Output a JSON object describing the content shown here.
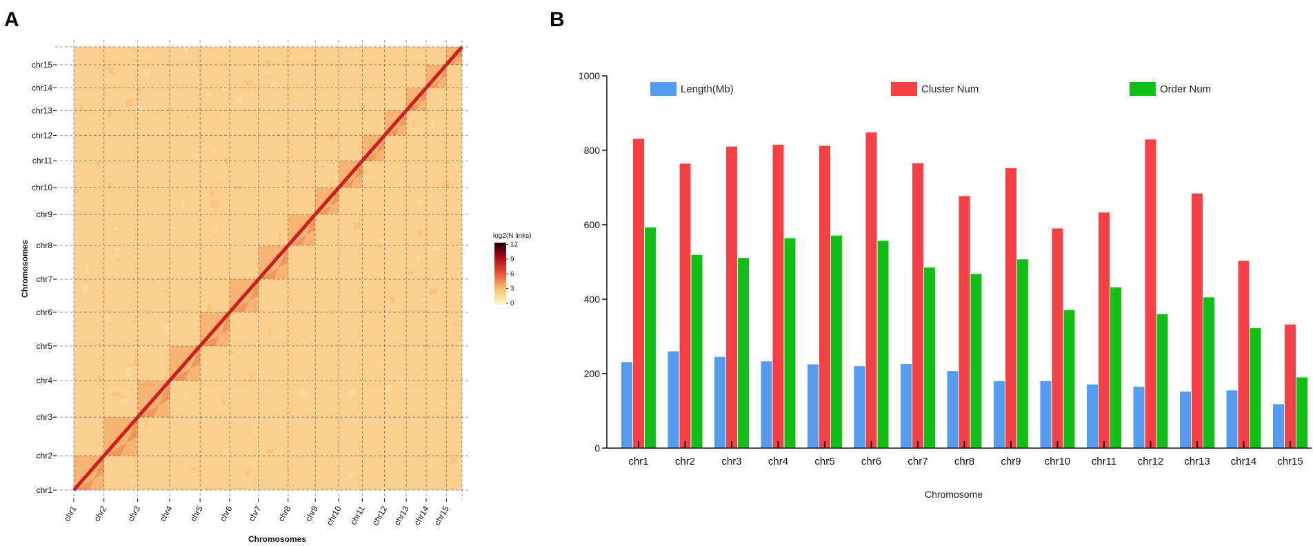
{
  "panels": {
    "a_label": "A",
    "b_label": "B"
  },
  "chart_data": [
    {
      "type": "heatmap",
      "title": "",
      "xlabel": "Chromosomes",
      "ylabel": "Chromosomes",
      "chromosomes": [
        "chr1",
        "chr2",
        "chr3",
        "chr4",
        "chr5",
        "chr6",
        "chr7",
        "chr8",
        "chr9",
        "chr10",
        "chr11",
        "chr12",
        "chr13",
        "chr14",
        "chr15"
      ],
      "relative_sizes": [
        1.0,
        1.12,
        1.06,
        1.01,
        0.98,
        0.96,
        0.98,
        0.9,
        0.78,
        0.78,
        0.74,
        0.72,
        0.66,
        0.67,
        0.52
      ],
      "colorbar": {
        "title": "log2(N links)",
        "ticks": [
          12,
          9,
          6,
          3,
          0
        ],
        "colors": [
          "#fff8d0",
          "#fcc270",
          "#e8543a",
          "#b40a1c",
          "#1a0005"
        ]
      }
    },
    {
      "type": "bar",
      "title": "",
      "xlabel": "Chromosome",
      "ylabel": "",
      "categories": [
        "chr1",
        "chr2",
        "chr3",
        "chr4",
        "chr5",
        "chr6",
        "chr7",
        "chr8",
        "chr9",
        "chr10",
        "chr11",
        "chr12",
        "chr13",
        "chr14",
        "chr15"
      ],
      "ylim": [
        0,
        1000
      ],
      "yticks": [
        0,
        200,
        400,
        600,
        800,
        1000
      ],
      "legend_position": "top",
      "series": [
        {
          "name": "Length(Mb)",
          "color": "#559cf0",
          "values": [
            231,
            260,
            245,
            233,
            225,
            220,
            226,
            207,
            180,
            180,
            171,
            165,
            152,
            155,
            118
          ]
        },
        {
          "name": "Cluster Num",
          "color": "#f54045",
          "values": [
            831,
            764,
            810,
            815,
            812,
            848,
            765,
            677,
            752,
            590,
            633,
            829,
            684,
            503,
            332
          ]
        },
        {
          "name": "Order Num",
          "color": "#12bf17",
          "values": [
            593,
            519,
            511,
            564,
            571,
            557,
            485,
            468,
            507,
            371,
            432,
            360,
            405,
            322,
            190
          ]
        }
      ]
    }
  ]
}
